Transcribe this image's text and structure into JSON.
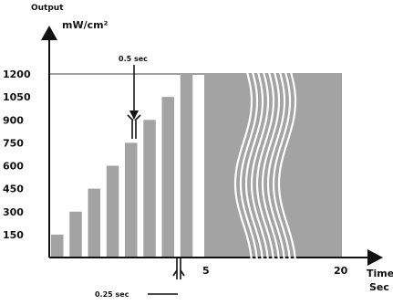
{
  "chart_data": {
    "type": "bar",
    "title": "",
    "y_axis": {
      "label_line1": "Output",
      "label_line2": "mW/cm²",
      "ticks": [
        "150",
        "300",
        "450",
        "600",
        "750",
        "900",
        "1050",
        "1200"
      ],
      "range": [
        0,
        1200
      ]
    },
    "x_axis": {
      "label_line1": "Time",
      "label_line2": "Sec",
      "ticks": [
        {
          "value": 5,
          "label": "5"
        },
        {
          "value": 20,
          "label": "20"
        }
      ]
    },
    "ramp_bars": {
      "step_duration_sec": 0.5,
      "gap_sec": 0.25,
      "values": [
        150,
        300,
        450,
        600,
        750,
        900,
        1050,
        1200
      ]
    },
    "plateau": {
      "value": 1200,
      "from_sec": 5,
      "to_sec": 20
    },
    "reference_line_value": 1200,
    "annotations": {
      "step_duration": "0.5 sec",
      "gap_duration": "0.25 sec"
    },
    "axis_break": true,
    "colors": {
      "bars": "#a3a3a3",
      "axis": "#111111",
      "break_lines": "#ffffff"
    }
  }
}
